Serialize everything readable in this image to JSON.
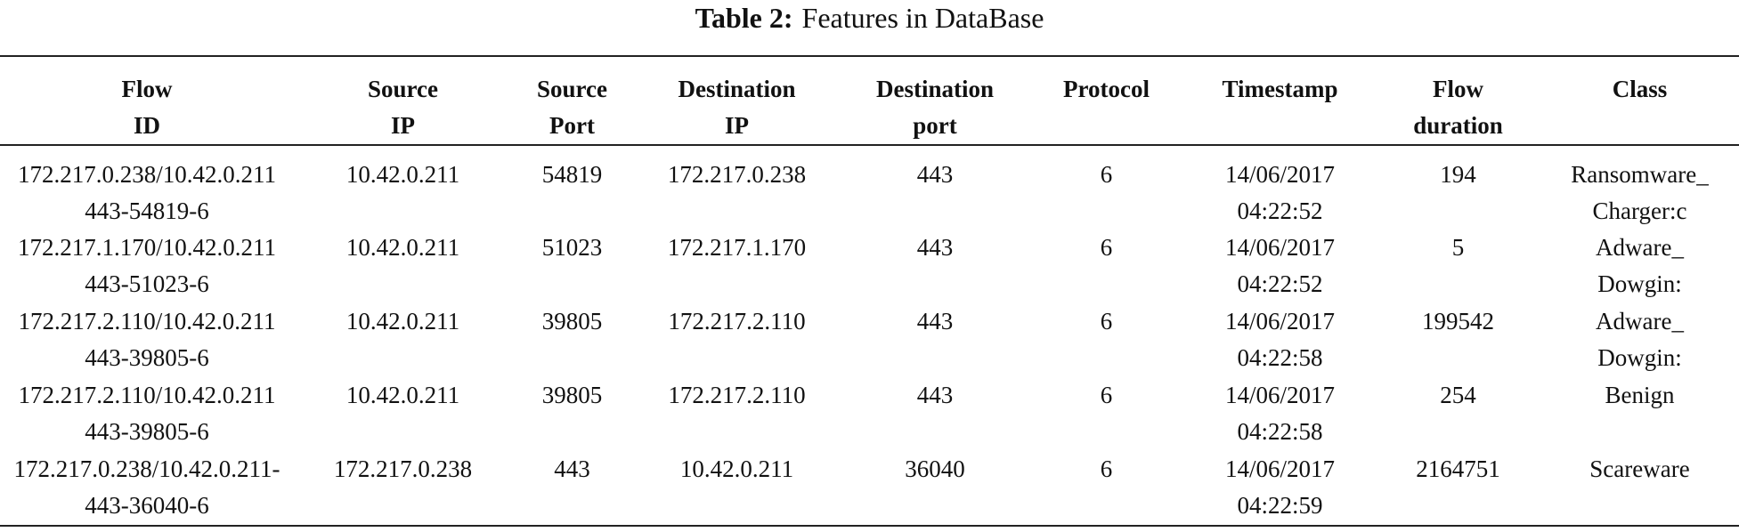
{
  "title": {
    "label": "Table 2:",
    "text": "Features in DataBase"
  },
  "table": {
    "columns": [
      [
        "Flow",
        "ID"
      ],
      [
        "Source",
        "IP"
      ],
      [
        "Source",
        "Port"
      ],
      [
        "Destination",
        "IP"
      ],
      [
        "Destination",
        "port"
      ],
      [
        "Protocol"
      ],
      [
        "Timestamp"
      ],
      [
        "Flow",
        "duration"
      ],
      [
        "Class"
      ]
    ],
    "rows": [
      [
        [
          "172.217.0.238/10.42.0.211",
          "443-54819-6"
        ],
        [
          "10.42.0.211"
        ],
        [
          "54819"
        ],
        [
          "172.217.0.238"
        ],
        [
          "443"
        ],
        [
          "6"
        ],
        [
          "14/06/2017",
          "04:22:52"
        ],
        [
          "194"
        ],
        [
          "Ransomware_",
          "Charger:c"
        ]
      ],
      [
        [
          "172.217.1.170/10.42.0.211",
          "443-51023-6"
        ],
        [
          "10.42.0.211"
        ],
        [
          "51023"
        ],
        [
          "172.217.1.170"
        ],
        [
          "443"
        ],
        [
          "6"
        ],
        [
          "14/06/2017",
          "04:22:52"
        ],
        [
          "5"
        ],
        [
          "Adware_",
          "Dowgin:"
        ]
      ],
      [
        [
          "172.217.2.110/10.42.0.211",
          "443-39805-6"
        ],
        [
          "10.42.0.211"
        ],
        [
          "39805"
        ],
        [
          "172.217.2.110"
        ],
        [
          "443"
        ],
        [
          "6"
        ],
        [
          "14/06/2017",
          "04:22:58"
        ],
        [
          "199542"
        ],
        [
          "Adware_",
          "Dowgin:"
        ]
      ],
      [
        [
          "172.217.2.110/10.42.0.211",
          "443-39805-6"
        ],
        [
          "10.42.0.211"
        ],
        [
          "39805"
        ],
        [
          "172.217.2.110"
        ],
        [
          "443"
        ],
        [
          "6"
        ],
        [
          "14/06/2017",
          "04:22:58"
        ],
        [
          "254"
        ],
        [
          "Benign"
        ]
      ],
      [
        [
          "172.217.0.238/10.42.0.211-",
          "443-36040-6"
        ],
        [
          "172.217.0.238"
        ],
        [
          "443"
        ],
        [
          "10.42.0.211"
        ],
        [
          "36040"
        ],
        [
          "6"
        ],
        [
          "14/06/2017",
          "04:22:59"
        ],
        [
          "2164751"
        ],
        [
          "Scareware"
        ]
      ]
    ]
  }
}
